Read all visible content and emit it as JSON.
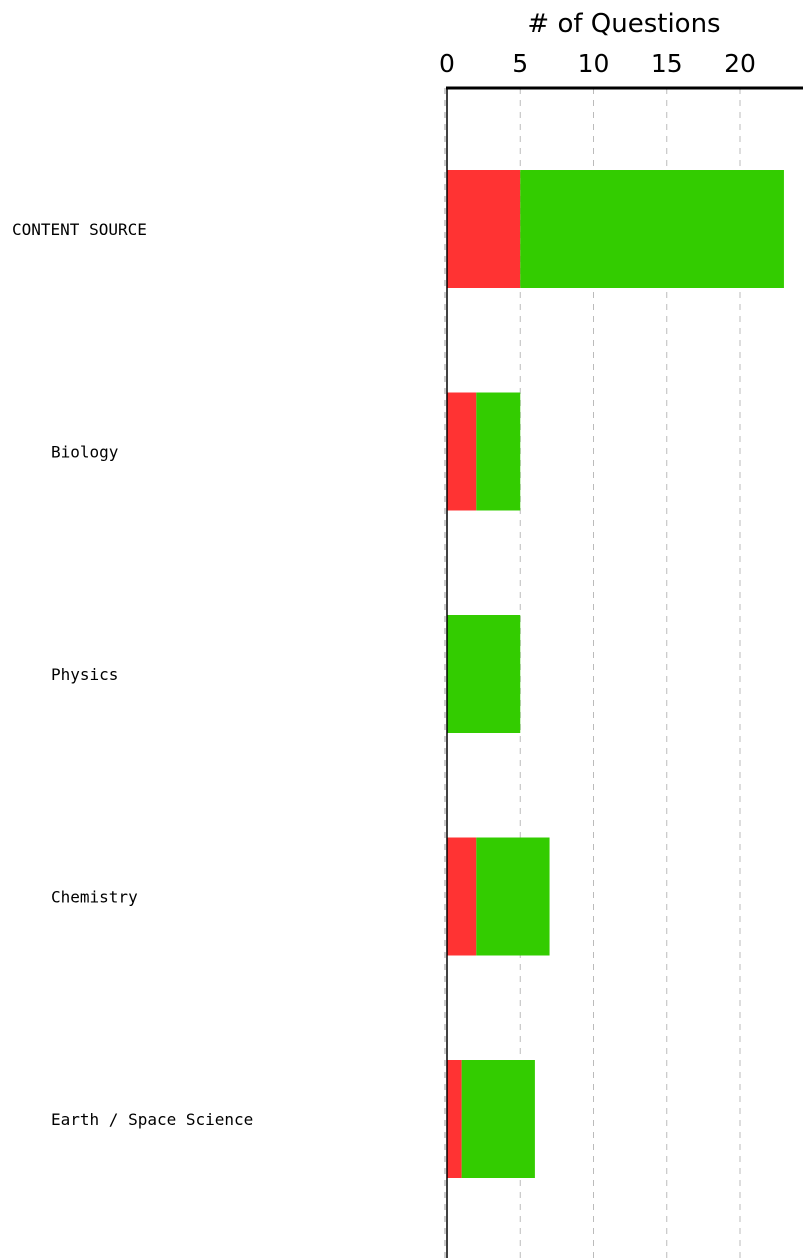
{
  "chart_data": {
    "type": "bar",
    "orientation": "horizontal",
    "stacked": true,
    "xlabel": "# of Questions",
    "xlim": [
      0,
      24
    ],
    "xticks": [
      0,
      5,
      10,
      15,
      20
    ],
    "grid": true,
    "categories": [
      {
        "label": "CONTENT SOURCE",
        "indent": false
      },
      {
        "label": "Biology",
        "indent": true
      },
      {
        "label": "Physics",
        "indent": true
      },
      {
        "label": "Chemistry",
        "indent": true
      },
      {
        "label": "Earth / Space Science",
        "indent": true
      }
    ],
    "series": [
      {
        "color": "#ff3333",
        "values": [
          5,
          2,
          0,
          2,
          1
        ]
      },
      {
        "color": "#33cc00",
        "values": [
          18,
          3,
          5,
          5,
          5
        ]
      }
    ]
  }
}
